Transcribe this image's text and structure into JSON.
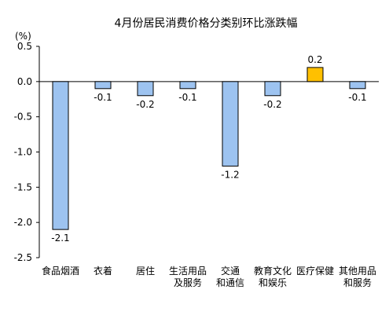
{
  "chart_data": {
    "type": "bar",
    "title": "4月份居民消费价格分类别环比涨跌幅",
    "ylabel": "(%)",
    "xlabel": "",
    "ylim": [
      -2.5,
      0.5
    ],
    "yticks": [
      "0.5",
      "0.0",
      "-0.5",
      "-1.0",
      "-1.5",
      "-2.0",
      "-2.5"
    ],
    "ytick_values": [
      0.5,
      0.0,
      -0.5,
      -1.0,
      -1.5,
      -2.0,
      -2.5
    ],
    "categories": [
      [
        "食品烟酒"
      ],
      [
        "衣着"
      ],
      [
        "居住"
      ],
      [
        "生活用品",
        "及服务"
      ],
      [
        "交通",
        "和通信"
      ],
      [
        "教育文化",
        "和娱乐"
      ],
      [
        "医疗保健"
      ],
      [
        "其他用品",
        "和服务"
      ]
    ],
    "values": [
      -2.1,
      -0.1,
      -0.2,
      -0.1,
      -1.2,
      -0.2,
      0.2,
      -0.1
    ],
    "data_labels": [
      "-2.1",
      "-0.1",
      "-0.2",
      "-0.1",
      "-1.2",
      "-0.2",
      "0.2",
      "-0.1"
    ],
    "grid": false,
    "colors": {
      "negative_fill": "#9DC3F0",
      "positive_fill": "#FFC000",
      "bar_stroke": "#000000",
      "axis": "#000000"
    }
  }
}
